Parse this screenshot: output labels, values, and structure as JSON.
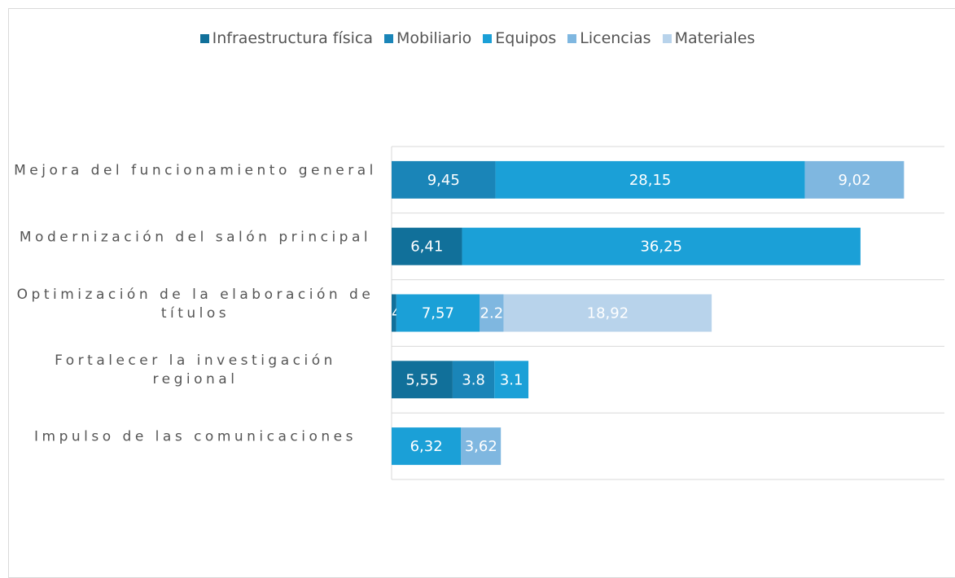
{
  "chart_data": {
    "type": "bar",
    "orientation": "horizontal",
    "stacked": true,
    "categories": [
      "Mejora del funcionamiento general",
      "Modernización del salón principal",
      "Optimización de la elaboración de títulos",
      "Fortalecer la investigación regional",
      "Impulso de las comunicaciones"
    ],
    "series": [
      {
        "name": "Infraestructura física",
        "color": "#11709a",
        "values": [
          null,
          6.41,
          0.43,
          5.55,
          null
        ],
        "value_labels": [
          null,
          "6,41",
          "0,43",
          "5,55",
          null
        ]
      },
      {
        "name": "Mobiliario",
        "color": "#1a85b8",
        "values": [
          9.45,
          null,
          null,
          3.8,
          null
        ],
        "value_labels": [
          "9,45",
          null,
          null,
          "3.8",
          null
        ]
      },
      {
        "name": "Equipos",
        "color": "#1ba0d7",
        "values": [
          28.15,
          36.25,
          7.57,
          3.1,
          6.32
        ],
        "value_labels": [
          "28,15",
          "36,25",
          "7,57",
          "3.1",
          "6,32"
        ]
      },
      {
        "name": "Licencias",
        "color": "#7fb7e0",
        "values": [
          9.02,
          null,
          2.2,
          null,
          3.62
        ],
        "value_labels": [
          "9,02",
          null,
          "2.2",
          null,
          "3,62"
        ]
      },
      {
        "name": "Materiales",
        "color": "#b8d3eb",
        "values": [
          null,
          null,
          18.92,
          null,
          null
        ],
        "value_labels": [
          null,
          null,
          "18,92",
          null,
          null
        ]
      }
    ],
    "xlim": [
      0,
      50
    ],
    "legend": "top"
  }
}
